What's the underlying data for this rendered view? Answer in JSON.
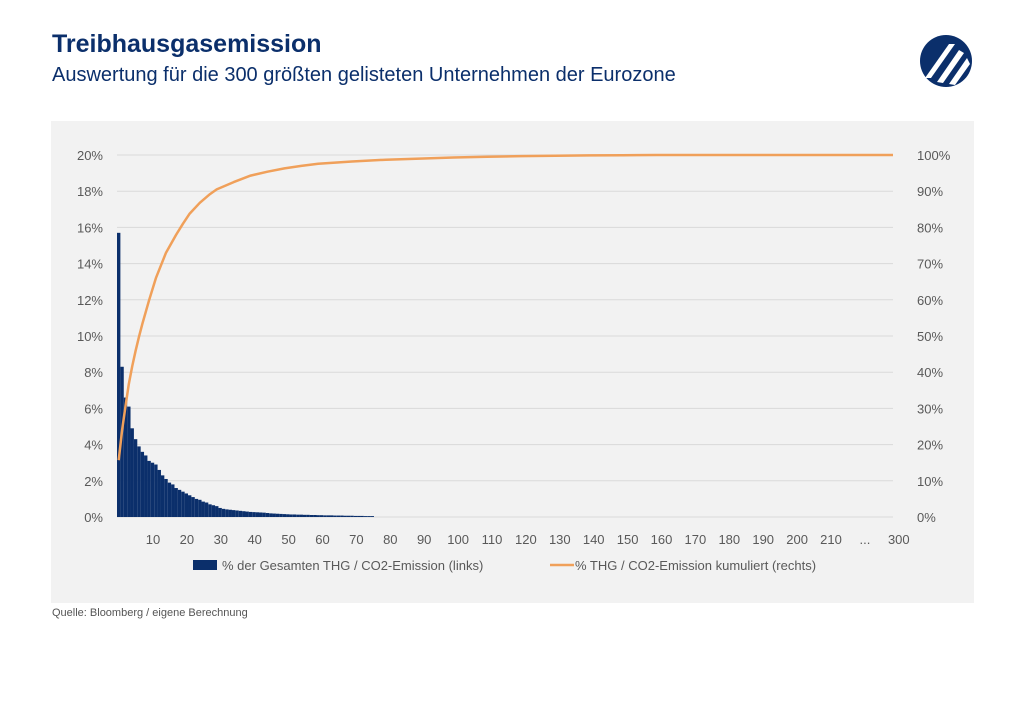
{
  "header": {
    "title": "Treibhausgasemission",
    "subtitle": "Auswertung für die 300 größten gelisteten Unternehmen der Eurozone"
  },
  "footer": {
    "source": "Quelle: Bloomberg / eigene Berechnung"
  },
  "colors": {
    "bar": "#0b2f6b",
    "line": "#f0a05a",
    "panel": "#f2f2f2",
    "grid": "#d9d9d9",
    "text": "#595959"
  },
  "chart_data": {
    "type": "bar",
    "combo": "bar+line",
    "x_tick_labels": [
      "10",
      "20",
      "30",
      "40",
      "50",
      "60",
      "70",
      "80",
      "90",
      "100",
      "110",
      "120",
      "130",
      "140",
      "150",
      "160",
      "170",
      "180",
      "190",
      "200",
      "210",
      "...",
      "300"
    ],
    "y_left_ticks": [
      "0%",
      "2%",
      "4%",
      "6%",
      "8%",
      "10%",
      "12%",
      "14%",
      "16%",
      "18%",
      "20%"
    ],
    "y_right_ticks": [
      "0%",
      "10%",
      "20%",
      "30%",
      "40%",
      "50%",
      "60%",
      "70%",
      "80%",
      "90%",
      "100%"
    ],
    "ylim_left": [
      0,
      20
    ],
    "ylim_right": [
      0,
      100
    ],
    "grid": true,
    "legend_position": "bottom",
    "series": [
      {
        "name": "% der Gesamten THG / CO2-Emission (links)",
        "type": "bar",
        "axis": "left",
        "x": [
          1,
          2,
          3,
          4,
          5,
          6,
          7,
          8,
          9,
          10,
          11,
          12,
          13,
          14,
          15,
          16,
          17,
          18,
          19,
          20,
          21,
          22,
          23,
          24,
          25,
          26,
          27,
          28,
          29,
          30,
          31,
          32,
          33,
          34,
          35,
          36,
          37,
          38,
          39,
          40,
          41,
          42,
          43,
          44,
          45,
          46,
          47,
          48,
          49,
          50,
          51,
          52,
          53,
          54,
          55,
          56,
          57,
          58,
          59,
          60,
          61,
          62,
          63,
          64,
          65,
          66,
          67,
          68,
          69,
          70,
          71,
          72,
          73,
          74,
          75,
          76
        ],
        "values": [
          15.7,
          8.3,
          6.6,
          6.1,
          4.9,
          4.3,
          3.9,
          3.6,
          3.4,
          3.1,
          3.0,
          2.9,
          2.6,
          2.3,
          2.1,
          1.9,
          1.8,
          1.6,
          1.5,
          1.4,
          1.3,
          1.2,
          1.1,
          1.0,
          0.95,
          0.85,
          0.8,
          0.7,
          0.65,
          0.6,
          0.5,
          0.45,
          0.42,
          0.4,
          0.38,
          0.36,
          0.34,
          0.32,
          0.3,
          0.28,
          0.27,
          0.26,
          0.25,
          0.24,
          0.22,
          0.2,
          0.19,
          0.18,
          0.17,
          0.16,
          0.15,
          0.14,
          0.14,
          0.13,
          0.13,
          0.12,
          0.12,
          0.11,
          0.11,
          0.1,
          0.1,
          0.09,
          0.09,
          0.09,
          0.08,
          0.08,
          0.08,
          0.07,
          0.07,
          0.07,
          0.06,
          0.06,
          0.06,
          0.05,
          0.05,
          0.05
        ]
      },
      {
        "name": "% THG / CO2-Emission kumuliert (rechts)",
        "type": "line",
        "axis": "right",
        "x": [
          1,
          2,
          3,
          4,
          5,
          6,
          7,
          8,
          10,
          12,
          15,
          18,
          20,
          22,
          25,
          28,
          30,
          35,
          40,
          45,
          50,
          55,
          60,
          70,
          80,
          90,
          100,
          110,
          120,
          130,
          140,
          150,
          160,
          170,
          180,
          190,
          200,
          210,
          220,
          230
        ],
        "values": [
          15.7,
          24.0,
          30.6,
          36.7,
          41.6,
          45.9,
          49.8,
          53.4,
          59.9,
          66.0,
          73.0,
          78.0,
          81.0,
          83.8,
          86.8,
          89.2,
          90.5,
          92.5,
          94.3,
          95.4,
          96.3,
          97.0,
          97.6,
          98.2,
          98.7,
          99.0,
          99.3,
          99.5,
          99.7,
          99.8,
          99.9,
          99.95,
          100,
          100,
          100,
          100,
          100,
          100,
          100,
          100
        ]
      }
    ]
  }
}
